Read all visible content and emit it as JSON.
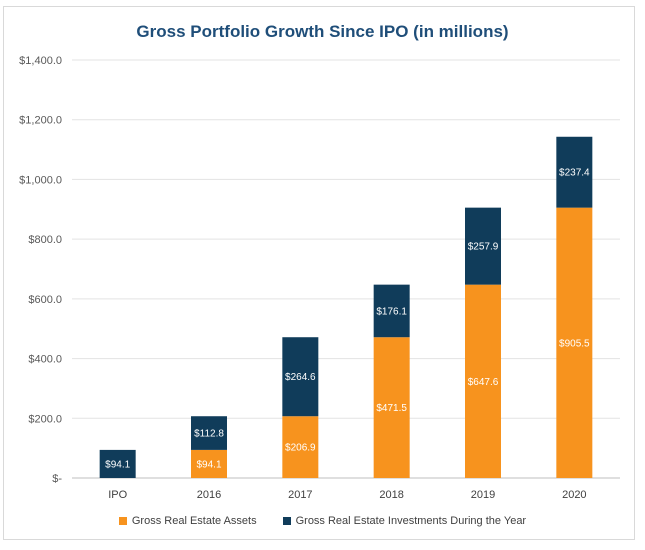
{
  "chart_data": {
    "type": "bar",
    "stacked": true,
    "title": "Gross Portfolio Growth Since IPO (in millions)",
    "categories": [
      "IPO",
      "2016",
      "2017",
      "2018",
      "2019",
      "2020"
    ],
    "series": [
      {
        "name": "Gross Real Estate Assets",
        "color": "#f7931e",
        "values": [
          0,
          94.1,
          206.9,
          471.5,
          647.6,
          905.5
        ],
        "labels": [
          "",
          "$94.1",
          "$206.9",
          "$471.5",
          "$647.6",
          "$905.5"
        ]
      },
      {
        "name": "Gross Real Estate Investments During the Year",
        "color": "#103c5a",
        "values": [
          94.1,
          112.8,
          264.6,
          176.1,
          257.9,
          237.4
        ],
        "labels": [
          "$94.1",
          "$112.8",
          "$264.6",
          "$176.1",
          "$257.9",
          "$237.4"
        ]
      }
    ],
    "ylim": [
      0,
      1400
    ],
    "yticks": [
      0,
      200,
      400,
      600,
      800,
      1000,
      1200,
      1400
    ],
    "ytick_labels": [
      "$-",
      "$200.0",
      "$400.0",
      "$600.0",
      "$800.0",
      "$1,000.0",
      "$1,200.0",
      "$1,400.0"
    ],
    "grid": true,
    "legend_position": "bottom"
  }
}
